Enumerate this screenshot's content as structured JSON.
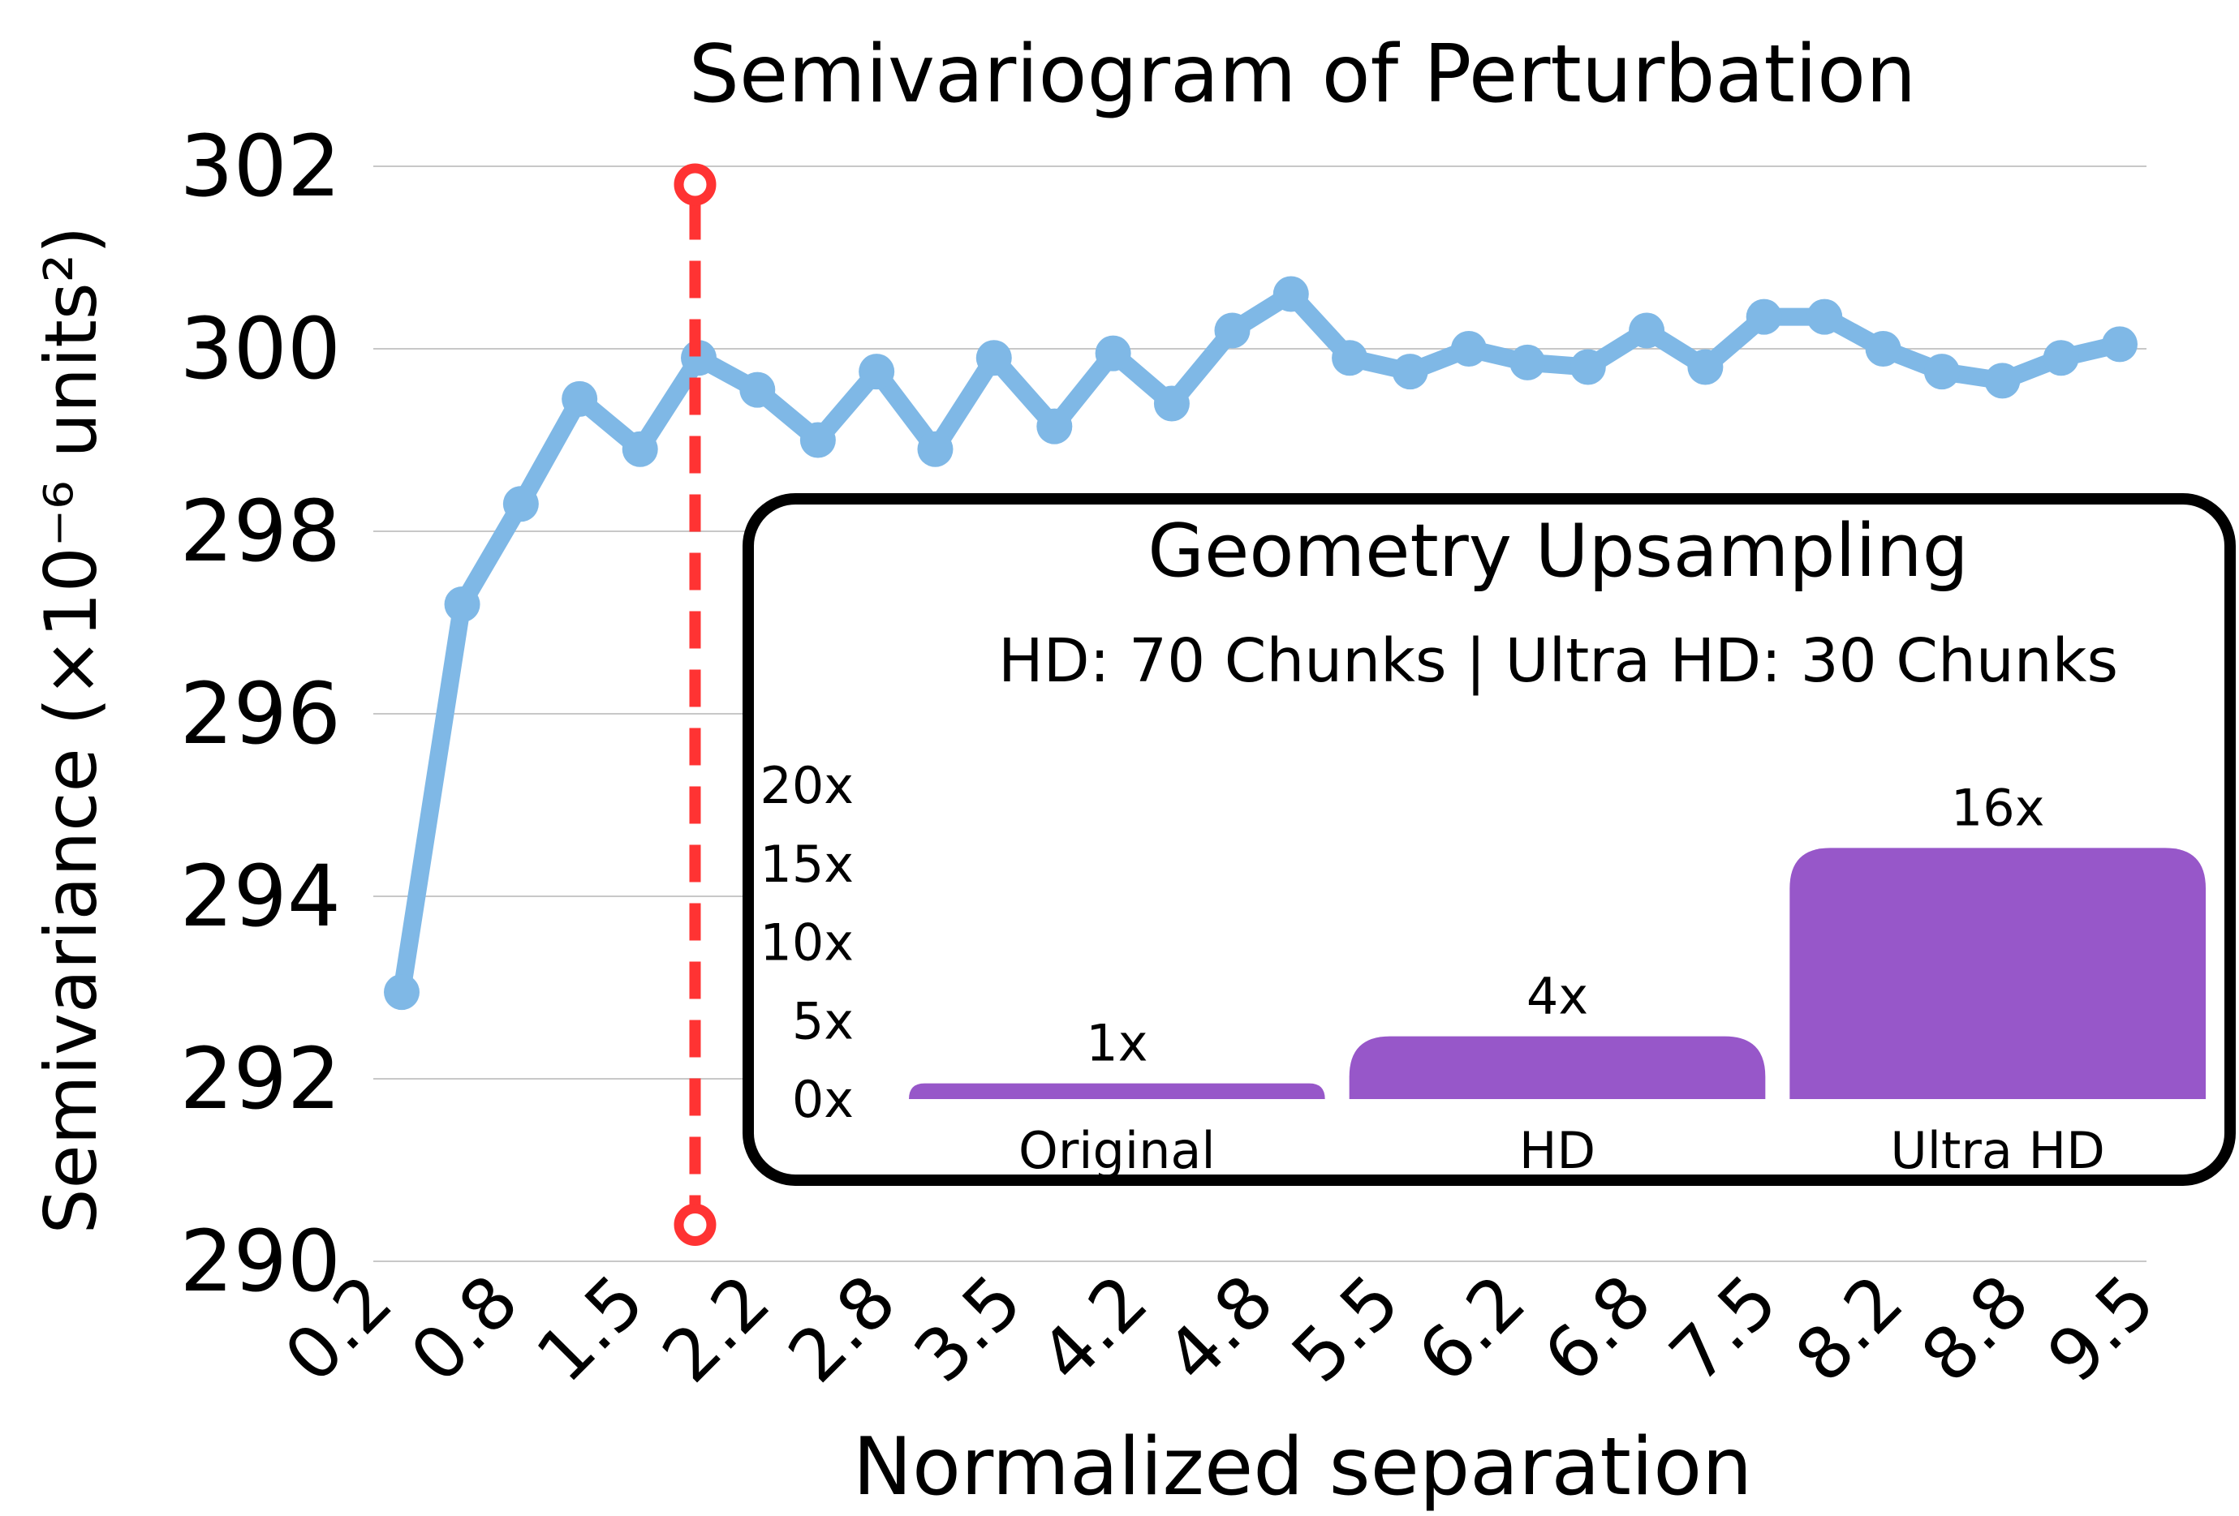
{
  "colors": {
    "line": "#7fb8e6",
    "marker_line": "#ff3333",
    "bar": "#9757c9",
    "grid": "#c8c8c8",
    "text": "#000000",
    "inset_border": "#000000"
  },
  "chart_data": [
    {
      "type": "line",
      "title": "Semivariogram of Perturbation",
      "xlabel": "Normalized separation",
      "ylabel": "Semivariance (×10⁻⁶ units²)",
      "x_tick_labels": [
        "0.2",
        "0.8",
        "1.5",
        "2.2",
        "2.8",
        "3.5",
        "4.2",
        "4.8",
        "5.5",
        "6.2",
        "6.8",
        "7.5",
        "8.2",
        "8.8",
        "9.5"
      ],
      "ylim": [
        290,
        302
      ],
      "y_ticks": [
        290,
        292,
        294,
        296,
        298,
        300,
        302
      ],
      "grid": true,
      "x": [
        0.15,
        0.48,
        0.8,
        1.12,
        1.45,
        1.77,
        2.09,
        2.42,
        2.74,
        3.06,
        3.38,
        3.71,
        4.03,
        4.35,
        4.68,
        5.0,
        5.32,
        5.65,
        5.97,
        6.29,
        6.62,
        6.94,
        7.26,
        7.58,
        7.91,
        8.23,
        8.55,
        8.88,
        9.2,
        9.52
      ],
      "values": [
        292.95,
        297.2,
        298.3,
        299.45,
        298.9,
        299.9,
        299.55,
        299.0,
        299.75,
        298.9,
        299.9,
        299.15,
        299.95,
        299.4,
        300.2,
        300.6,
        299.9,
        299.75,
        300.0,
        299.85,
        299.8,
        300.2,
        299.8,
        300.35,
        300.35,
        300.0,
        299.75,
        299.65,
        299.9,
        300.05
      ],
      "reference_line": {
        "x": 1.75,
        "y_top": 301.8,
        "y_bottom": 290.4,
        "style": "dashed"
      }
    },
    {
      "type": "bar",
      "title": "Geometry Upsampling",
      "subtitle": "HD: 70 Chunks | Ultra HD: 30 Chunks",
      "categories": [
        "Original",
        "HD",
        "Ultra HD"
      ],
      "values": [
        1,
        4,
        16
      ],
      "value_labels": [
        "1x",
        "4x",
        "16x"
      ],
      "y_ticks": [
        "0x",
        "5x",
        "10x",
        "15x",
        "20x"
      ],
      "ylim": [
        0,
        20
      ]
    }
  ]
}
